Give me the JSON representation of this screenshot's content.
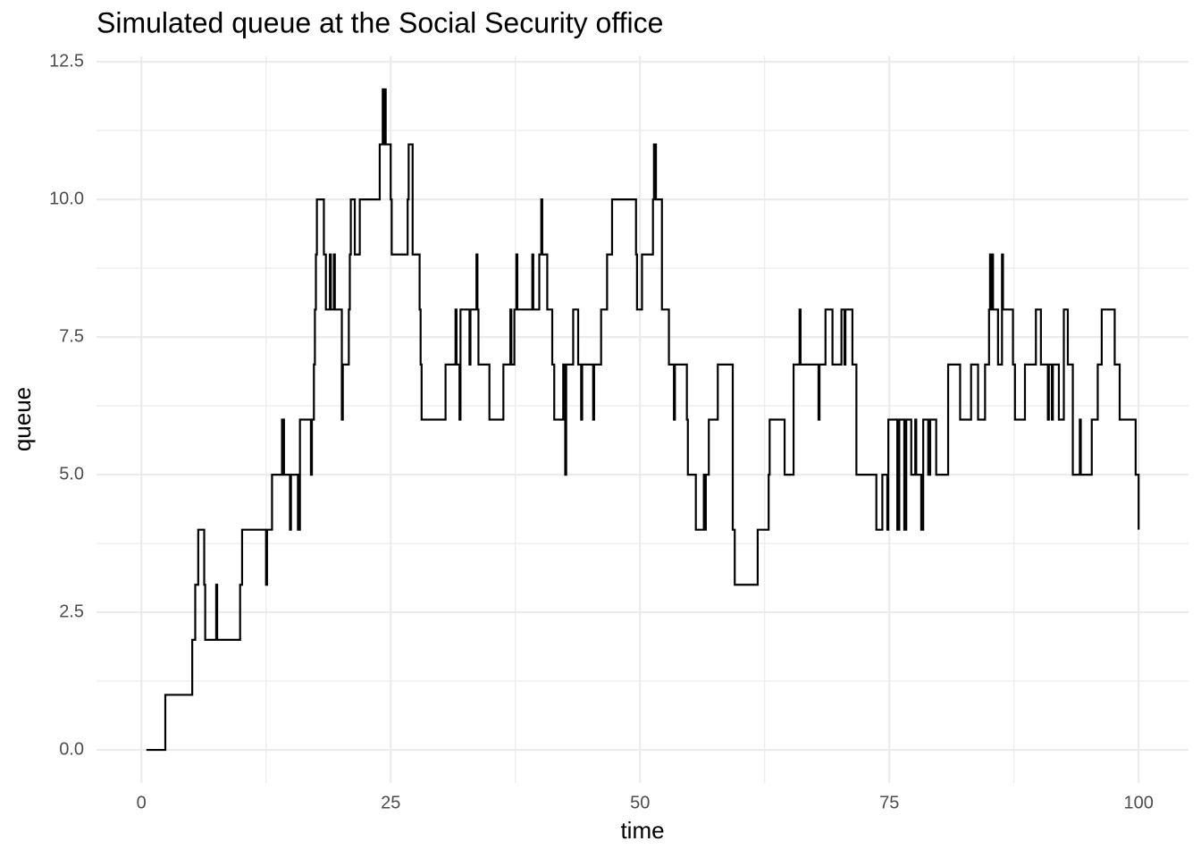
{
  "chart_data": {
    "type": "line",
    "step": "post",
    "title": "Simulated queue at the Social Security office",
    "x_label": "time",
    "y_label": "queue",
    "color": "#000000",
    "grid": true,
    "xlim": [
      -4.5,
      105
    ],
    "ylim": [
      -0.6,
      12.6
    ],
    "xticks": [
      0,
      25,
      50,
      75,
      100
    ],
    "yticks": [
      {
        "value": 0,
        "label": "0.0"
      },
      2.5,
      {
        "value": 5,
        "label": "5.0"
      },
      7.5,
      {
        "value": 10,
        "label": "10.0"
      },
      12.5
    ],
    "minor_xgrid": [
      12.5,
      37.5,
      62.5,
      87.5
    ],
    "minor_ygrid": [
      1.25,
      3.75,
      6.25,
      8.75,
      11.25
    ],
    "x": [
      0.5,
      2.4,
      5.1,
      5.4,
      5.7,
      6.3,
      6.4,
      7.5,
      7.6,
      9.9,
      10.1,
      12.5,
      12.6,
      13.1,
      14.1,
      14.3,
      14.9,
      15.0,
      15.7,
      15.9,
      17.0,
      17.1,
      17.3,
      17.4,
      17.5,
      17.6,
      18.3,
      18.5,
      18.9,
      19.0,
      19.3,
      19.4,
      20.1,
      20.2,
      20.8,
      20.9,
      21.0,
      21.4,
      21.9,
      23.9,
      24.2,
      24.3,
      24.4,
      24.5,
      25.0,
      25.1,
      26.7,
      26.8,
      27.2,
      27.9,
      28.0,
      28.1,
      30.5,
      31.5,
      31.6,
      31.9,
      32.0,
      32.9,
      33.0,
      33.6,
      33.7,
      33.8,
      34.9,
      36.3,
      37.0,
      37.1,
      37.4,
      37.6,
      37.7,
      39.2,
      39.3,
      39.9,
      40.1,
      40.2,
      40.7,
      41.2,
      41.4,
      42.3,
      42.5,
      42.6,
      43.3,
      43.8,
      44.1,
      44.2,
      45.3,
      45.4,
      46.1,
      46.7,
      47.2,
      49.6,
      49.7,
      50.2,
      51.3,
      51.4,
      51.6,
      52.2,
      52.9,
      53.4,
      53.5,
      54.7,
      54.8,
      55.6,
      56.4,
      56.5,
      56.6,
      56.9,
      57.8,
      59.3,
      59.5,
      61.8,
      62.9,
      63.0,
      64.5,
      65.4,
      66.0,
      66.1,
      67.9,
      68.0,
      68.6,
      69.3,
      70.2,
      70.5,
      70.6,
      71.3,
      71.7,
      73.7,
      74.3,
      74.8,
      74.9,
      75.8,
      76.0,
      76.5,
      76.7,
      77.2,
      77.6,
      77.7,
      78.2,
      78.4,
      78.9,
      79.1,
      79.7,
      80.9,
      82.1,
      83.2,
      83.9,
      84.6,
      85.0,
      85.1,
      85.2,
      85.3,
      85.4,
      85.9,
      86.3,
      86.4,
      87.4,
      87.6,
      88.6,
      89.7,
      90.2,
      90.9,
      91.0,
      91.3,
      91.4,
      92.0,
      92.5,
      92.9,
      93.4,
      94.1,
      94.2,
      95.3,
      95.9,
      96.3,
      97.6,
      98.1,
      99.7,
      100.0
    ],
    "values": [
      0,
      1,
      2,
      3,
      4,
      3,
      2,
      3,
      2,
      3,
      4,
      3,
      4,
      5,
      6,
      5,
      4,
      5,
      4,
      6,
      5,
      6,
      7,
      8,
      9,
      10,
      9,
      8,
      9,
      8,
      9,
      8,
      6,
      7,
      8,
      9,
      10,
      9,
      10,
      11,
      12,
      11,
      12,
      11,
      10,
      9,
      10,
      11,
      9,
      8,
      7,
      6,
      7,
      8,
      7,
      6,
      8,
      7,
      8,
      9,
      8,
      7,
      6,
      7,
      8,
      7,
      8,
      9,
      8,
      9,
      8,
      9,
      10,
      9,
      8,
      7,
      6,
      7,
      5,
      7,
      8,
      7,
      6,
      7,
      6,
      7,
      8,
      9,
      10,
      9,
      8,
      9,
      10,
      11,
      10,
      8,
      7,
      6,
      7,
      6,
      5,
      4,
      5,
      4,
      5,
      6,
      7,
      4,
      3,
      4,
      5,
      6,
      5,
      7,
      8,
      7,
      6,
      7,
      8,
      7,
      8,
      7,
      8,
      7,
      5,
      4,
      5,
      4,
      6,
      4,
      6,
      4,
      6,
      5,
      6,
      5,
      4,
      6,
      5,
      6,
      5,
      7,
      6,
      7,
      6,
      7,
      8,
      9,
      8,
      9,
      8,
      7,
      9,
      8,
      7,
      6,
      7,
      8,
      7,
      6,
      7,
      6,
      7,
      6,
      8,
      7,
      5,
      6,
      5,
      6,
      7,
      8,
      7,
      6,
      5,
      4
    ]
  }
}
